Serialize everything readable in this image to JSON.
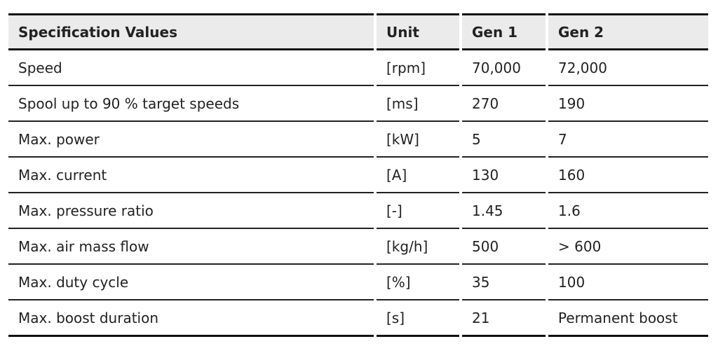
{
  "table": {
    "header": [
      "Specification Values",
      "Unit",
      "Gen 1",
      "Gen 2"
    ],
    "rows": [
      [
        "Speed",
        "[rpm]",
        "70,000",
        "72,000"
      ],
      [
        "Spool up to 90 % target speeds",
        "[ms]",
        "270",
        "190"
      ],
      [
        "Max. power",
        "[kW]",
        "5",
        "7"
      ],
      [
        "Max. current",
        "[A]",
        "130",
        "160"
      ],
      [
        "Max. pressure ratio",
        "[-]",
        "1.45",
        "1.6"
      ],
      [
        "Max. air mass flow",
        "[kg/h]",
        "500",
        "> 600"
      ],
      [
        "Max. duty cycle",
        "[%]",
        "35",
        "100"
      ],
      [
        "Max. boost duration",
        "[s]",
        "21",
        "Permanent boost"
      ]
    ]
  }
}
